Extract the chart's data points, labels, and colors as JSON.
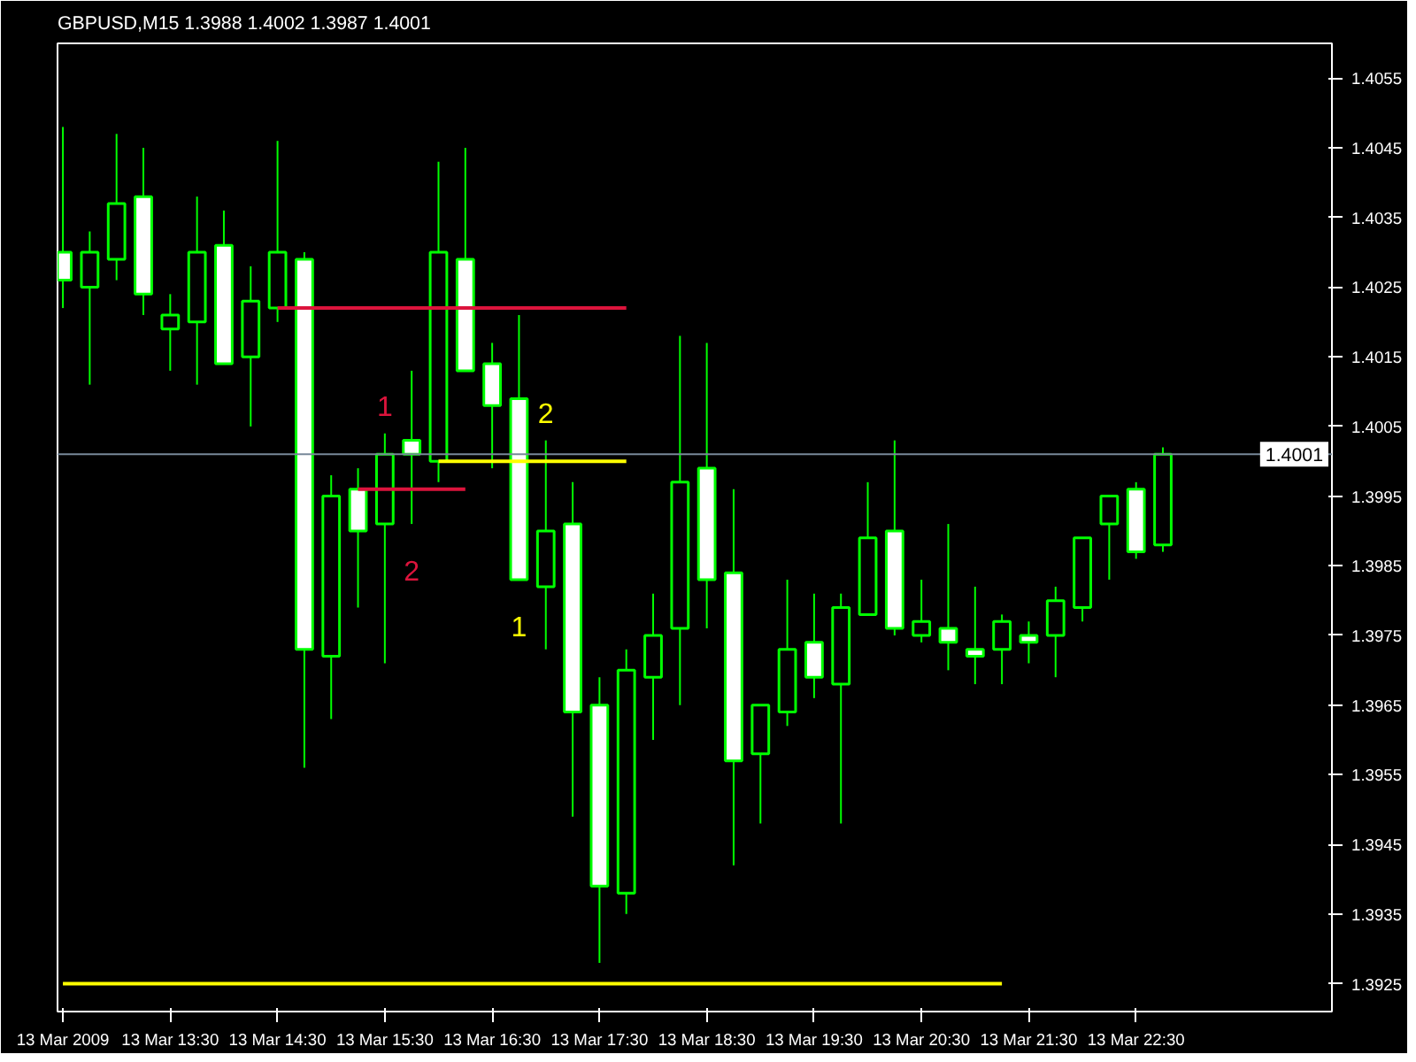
{
  "chart_data": {
    "type": "candlestick",
    "title": "GBPUSD,M15  1.3988 1.4002 1.3987 1.4001",
    "color": "#00ff00",
    "categories": [
      "13 Mar 2009",
      null,
      null,
      null,
      "13 Mar 13:30",
      null,
      null,
      null,
      "13 Mar 14:30",
      null,
      null,
      null,
      "13 Mar 15:30",
      null,
      null,
      null,
      "13 Mar 16:30",
      null,
      null,
      null,
      "13 Mar 17:30",
      null,
      null,
      null,
      "13 Mar 18:30",
      null,
      null,
      null,
      "13 Mar 19:30",
      null,
      null,
      null,
      "13 Mar 20:30",
      null,
      null,
      null,
      "13 Mar 21:30",
      null,
      null,
      null,
      "13 Mar 22:30",
      null
    ],
    "ohlc": [
      [
        1.403,
        1.4048,
        1.4022,
        1.4026
      ],
      [
        1.4025,
        1.4033,
        1.4011,
        1.403
      ],
      [
        1.4029,
        1.4047,
        1.4026,
        1.4037
      ],
      [
        1.4038,
        1.4045,
        1.4021,
        1.4024
      ],
      [
        1.4019,
        1.4024,
        1.4013,
        1.4021
      ],
      [
        1.402,
        1.4038,
        1.4011,
        1.403
      ],
      [
        1.4031,
        1.4036,
        1.4014,
        1.4014
      ],
      [
        1.4015,
        1.4028,
        1.4005,
        1.4023
      ],
      [
        1.4022,
        1.4046,
        1.402,
        1.403
      ],
      [
        1.4029,
        1.403,
        1.3956,
        1.3973
      ],
      [
        1.3972,
        1.3998,
        1.3963,
        1.3995
      ],
      [
        1.3996,
        1.3999,
        1.3979,
        1.399
      ],
      [
        1.3991,
        1.4004,
        1.3971,
        1.4001
      ],
      [
        1.4003,
        1.4013,
        1.3991,
        1.4001
      ],
      [
        1.4,
        1.4043,
        1.3997,
        1.403
      ],
      [
        1.4029,
        1.4045,
        1.4013,
        1.4013
      ],
      [
        1.4014,
        1.4017,
        1.3999,
        1.4008
      ],
      [
        1.4009,
        1.4021,
        1.3983,
        1.3983
      ],
      [
        1.3982,
        1.4003,
        1.3973,
        1.399
      ],
      [
        1.3991,
        1.3997,
        1.3949,
        1.3964
      ],
      [
        1.3965,
        1.3969,
        1.3928,
        1.3939
      ],
      [
        1.3938,
        1.3973,
        1.3935,
        1.397
      ],
      [
        1.3969,
        1.3981,
        1.396,
        1.3975
      ],
      [
        1.3976,
        1.4018,
        1.3965,
        1.3997
      ],
      [
        1.3999,
        1.4017,
        1.3976,
        1.3983
      ],
      [
        1.3984,
        1.3996,
        1.3942,
        1.3957
      ],
      [
        1.3958,
        1.3965,
        1.3948,
        1.3965
      ],
      [
        1.3964,
        1.3983,
        1.3962,
        1.3973
      ],
      [
        1.3974,
        1.3981,
        1.3966,
        1.3969
      ],
      [
        1.3968,
        1.3981,
        1.3948,
        1.3979
      ],
      [
        1.3978,
        1.3997,
        1.3978,
        1.3989
      ],
      [
        1.399,
        1.4003,
        1.3975,
        1.3976
      ],
      [
        1.3975,
        1.3983,
        1.3974,
        1.3977
      ],
      [
        1.3976,
        1.3991,
        1.397,
        1.3974
      ],
      [
        1.3973,
        1.3982,
        1.3968,
        1.3972
      ],
      [
        1.3973,
        1.3978,
        1.3968,
        1.3977
      ],
      [
        1.3975,
        1.3977,
        1.3971,
        1.3974
      ],
      [
        1.3975,
        1.3982,
        1.3969,
        1.398
      ],
      [
        1.3979,
        1.3989,
        1.3977,
        1.3989
      ],
      [
        1.3991,
        1.3995,
        1.3983,
        1.3995
      ],
      [
        1.3996,
        1.3997,
        1.3986,
        1.3987
      ],
      [
        1.3988,
        1.4002,
        1.3987,
        1.4001
      ]
    ],
    "series": [
      {
        "type": "line",
        "color": "#dc143c",
        "values": [
          null,
          null,
          null,
          null,
          null,
          null,
          null,
          null,
          1.4022,
          1.4022,
          1.4022,
          1.4022,
          1.4022,
          1.4022,
          1.4022,
          1.4022,
          1.4022,
          1.4022,
          1.4022,
          1.4022,
          1.4022,
          1.4022,
          null,
          null,
          null,
          null,
          null,
          null,
          null,
          null,
          null,
          null,
          null,
          null,
          null,
          null,
          null,
          null,
          null,
          null,
          null,
          null
        ]
      },
      {
        "type": "line",
        "color": "#dc143c",
        "values": [
          null,
          null,
          null,
          null,
          null,
          null,
          null,
          null,
          null,
          null,
          null,
          1.3996,
          1.3996,
          1.3996,
          1.3996,
          1.3996,
          null,
          null,
          null,
          null,
          null,
          null,
          null,
          null,
          null,
          null,
          null,
          null,
          null,
          null,
          null,
          null,
          null,
          null,
          null,
          null,
          null,
          null,
          null,
          null,
          null,
          null
        ]
      },
      {
        "type": "line",
        "color": "#ffff00",
        "values": [
          null,
          null,
          null,
          null,
          null,
          null,
          null,
          null,
          null,
          null,
          null,
          null,
          null,
          null,
          1.4,
          1.4,
          1.4,
          1.4,
          1.4,
          1.4,
          1.4,
          1.4,
          null,
          null,
          null,
          null,
          null,
          null,
          null,
          null,
          null,
          null,
          null,
          null,
          null,
          null,
          null,
          null,
          null,
          null,
          null,
          null
        ]
      },
      {
        "type": "line",
        "color": "#ffff00",
        "values": [
          1.3925,
          1.3925,
          1.3925,
          1.3925,
          1.3925,
          1.3925,
          1.3925,
          1.3925,
          1.3925,
          1.3925,
          1.3925,
          1.3925,
          1.3925,
          1.3925,
          1.3925,
          1.3925,
          1.3925,
          1.3925,
          1.3925,
          1.3925,
          1.3925,
          1.3925,
          1.3925,
          1.3925,
          1.3925,
          1.3925,
          1.3925,
          1.3925,
          1.3925,
          1.3925,
          1.3925,
          1.3925,
          1.3925,
          1.3925,
          1.3925,
          1.3925,
          null,
          null,
          null,
          null,
          null,
          null
        ]
      }
    ],
    "ref_lines": [
      {
        "axis": "y",
        "value": 1.4001,
        "label": "1.4001",
        "color": "#778899"
      }
    ],
    "annotations": [
      {
        "text": "1",
        "y": 1.4004
      },
      {
        "text": "2",
        "y": 1.3991
      },
      {
        "text": "2",
        "y": 1.4003
      },
      {
        "text": "1",
        "y": 1.3983
      }
    ],
    "ylim": [
      1.3921,
      1.406
    ],
    "yticks": [
      1.3925,
      1.3935,
      1.3945,
      1.3955,
      1.3965,
      1.3975,
      1.3985,
      1.3995,
      1.4005,
      1.4015,
      1.4025,
      1.4035,
      1.4045,
      1.4055
    ]
  }
}
